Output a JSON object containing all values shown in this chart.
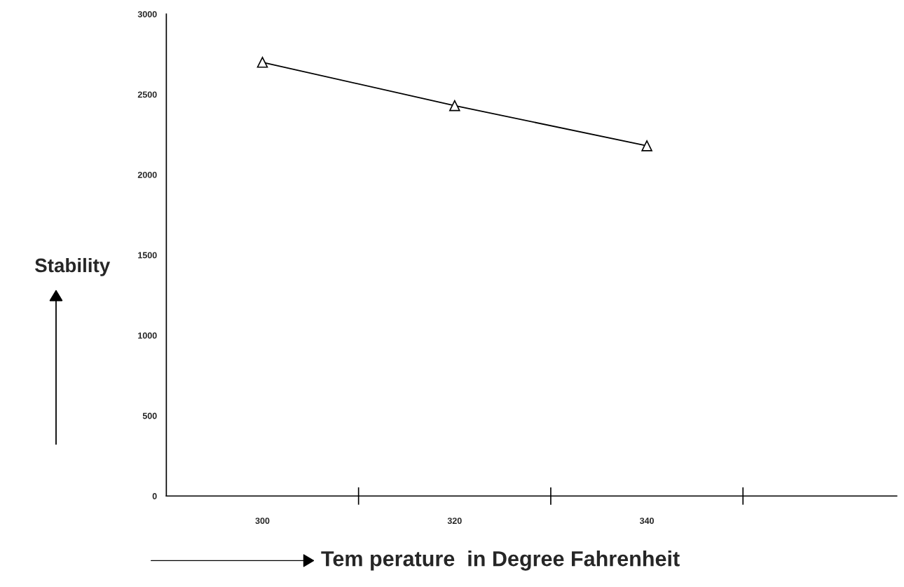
{
  "chart_data": {
    "type": "line",
    "xlabel": "Tem perature  in Degree Fahrenheit",
    "ylabel": "Stability",
    "categories": [
      "300",
      "320",
      "340"
    ],
    "series": [
      {
        "color": "#000000",
        "values": [
          2700,
          2430,
          2180
        ]
      }
    ],
    "ylim": [
      0,
      3000
    ],
    "yticks": [
      0,
      500,
      1000,
      1500,
      2000,
      2500,
      3000
    ],
    "marker": "triangle",
    "line_style": "solid",
    "grid": false
  }
}
